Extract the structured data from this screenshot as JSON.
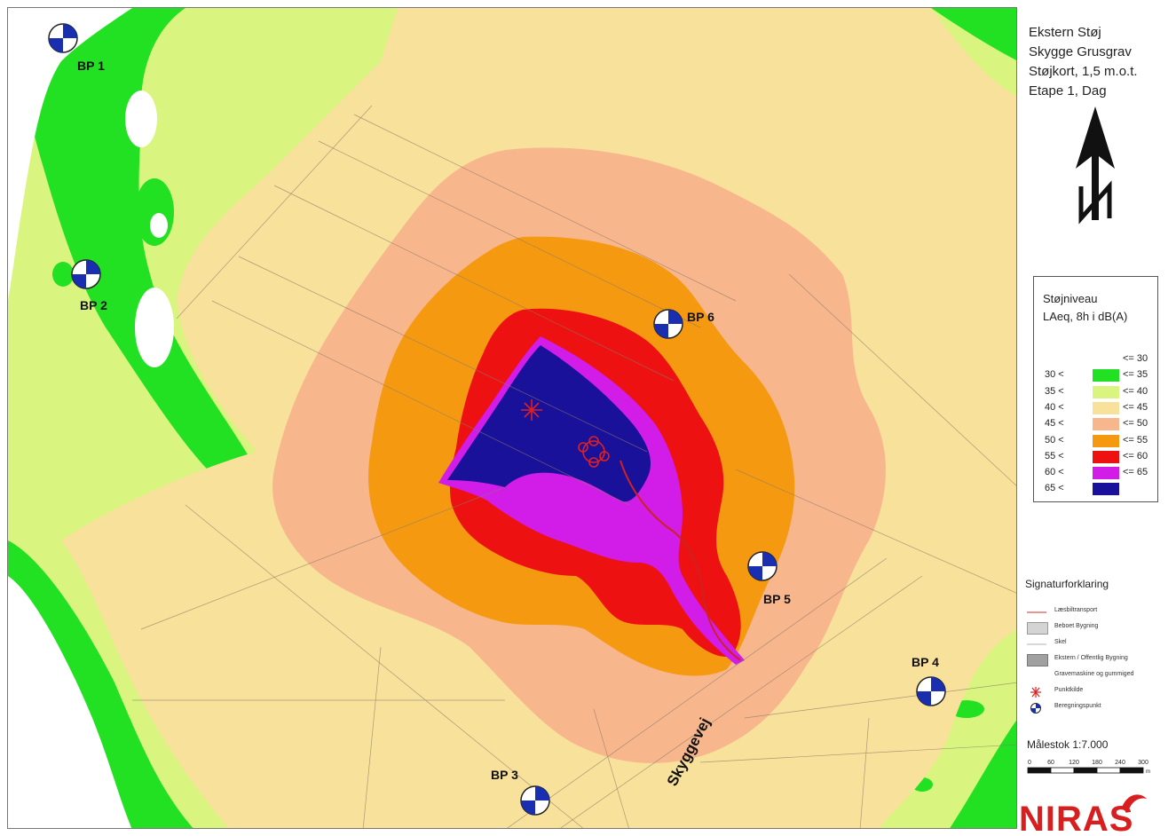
{
  "title": {
    "line1": "Ekstern Støj",
    "line2": "Skygge Grusgrav",
    "line3": "Støjkort, 1,5 m.o.t.",
    "line4": "Etape 1, Dag"
  },
  "north_arrow_icon": "north-arrow-icon",
  "legend": {
    "title_line1": "Støjniveau",
    "title_line2": "LAeq, 8h i dB(A)",
    "rows": [
      {
        "low": "",
        "high": "<= 30",
        "color": "#ffffff"
      },
      {
        "low": "30 <",
        "high": "<= 35",
        "color": "#22e022"
      },
      {
        "low": "35 <",
        "high": "<= 40",
        "color": "#d9f57f"
      },
      {
        "low": "40 <",
        "high": "<= 45",
        "color": "#f8e19a"
      },
      {
        "low": "45 <",
        "high": "<= 50",
        "color": "#f8b68d"
      },
      {
        "low": "50 <",
        "high": "<= 55",
        "color": "#f59a10"
      },
      {
        "low": "55 <",
        "high": "<= 60",
        "color": "#ee1111"
      },
      {
        "low": "60 <",
        "high": "<= 65",
        "color": "#d21ce8"
      },
      {
        "low": "65 <",
        "high": "",
        "color": "#1a119a"
      }
    ]
  },
  "signatur": {
    "title": "Signaturforklaring",
    "items": [
      {
        "label": "Læsbiltransport",
        "symbol": "red-line"
      },
      {
        "label": "Beboet Bygning",
        "symbol": "light-grey-box"
      },
      {
        "label": "Skel",
        "symbol": "thin-line"
      },
      {
        "label": "Ekstern / Offentlig Bygning",
        "symbol": "dark-grey-box"
      },
      {
        "label": "Gravemaskine og gummiged",
        "symbol": "none"
      },
      {
        "label": "Punktkilde",
        "symbol": "point-source-icon"
      },
      {
        "label": "Beregningspunkt",
        "symbol": "calc-point-icon"
      }
    ]
  },
  "scale": {
    "label": "Målestok 1:7.000",
    "ticks": [
      "0",
      "60",
      "120",
      "180",
      "240",
      "300"
    ],
    "unit": "m"
  },
  "logo": "NIRAS",
  "map": {
    "road_label": "Skyggevej",
    "points": [
      {
        "id": "BP 1"
      },
      {
        "id": "BP 2"
      },
      {
        "id": "BP 3"
      },
      {
        "id": "BP 4"
      },
      {
        "id": "BP 5"
      },
      {
        "id": "BP 6"
      }
    ]
  }
}
